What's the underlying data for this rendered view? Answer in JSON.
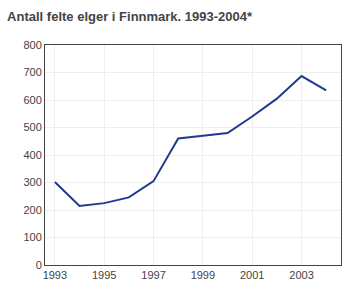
{
  "chart_data": {
    "type": "line",
    "title": "Antall felte elger i Finnmark. 1993-2004*",
    "x": [
      1993,
      1994,
      1995,
      1996,
      1997,
      1998,
      1999,
      2000,
      2001,
      2002,
      2003,
      2004
    ],
    "values": [
      302,
      215,
      225,
      246,
      305,
      460,
      470,
      480,
      540,
      605,
      687,
      635
    ],
    "color": "#1f3a8f",
    "xlim": [
      1992.6,
      2004.6
    ],
    "xticks": [
      1993,
      1995,
      1997,
      1999,
      2001,
      2003
    ],
    "ylim": [
      0,
      800
    ],
    "yticks": [
      0,
      100,
      200,
      300,
      400,
      500,
      600,
      700,
      800
    ],
    "grid": true
  }
}
